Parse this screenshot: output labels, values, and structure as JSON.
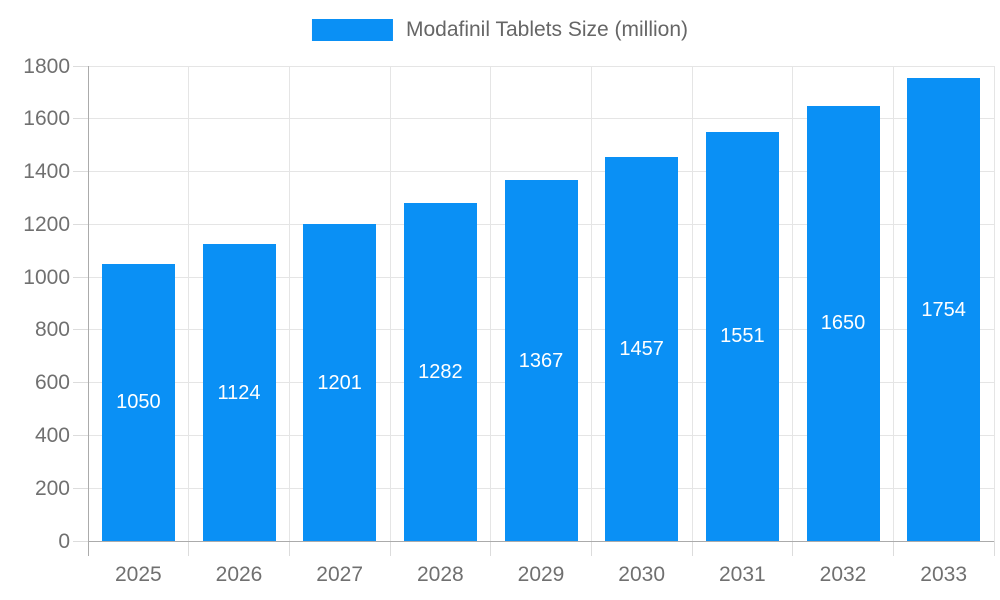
{
  "chart_data": {
    "type": "bar",
    "title": "",
    "legend": "Modafinil Tablets Size (million)",
    "legend_position": "top-center",
    "categories": [
      "2025",
      "2026",
      "2027",
      "2028",
      "2029",
      "2030",
      "2031",
      "2032",
      "2033"
    ],
    "series": [
      {
        "name": "Modafinil Tablets Size (million)",
        "values": [
          1050,
          1124,
          1201,
          1282,
          1367,
          1457,
          1551,
          1650,
          1754
        ]
      }
    ],
    "xlabel": "",
    "ylabel": "",
    "ylim": [
      0,
      1800
    ],
    "yticks": [
      0,
      200,
      400,
      600,
      800,
      1000,
      1200,
      1400,
      1600,
      1800
    ],
    "grid": true,
    "value_labels_inside_bars": true,
    "colors": {
      "bar": "#0a90f5",
      "grid_line": "#e5e5e5",
      "tick_line": "#dcdcdc",
      "axis_line": "#ababab",
      "axis_label": "#707070",
      "legend_text": "#666666",
      "value_label": "#ffffff",
      "background": "#ffffff"
    }
  }
}
